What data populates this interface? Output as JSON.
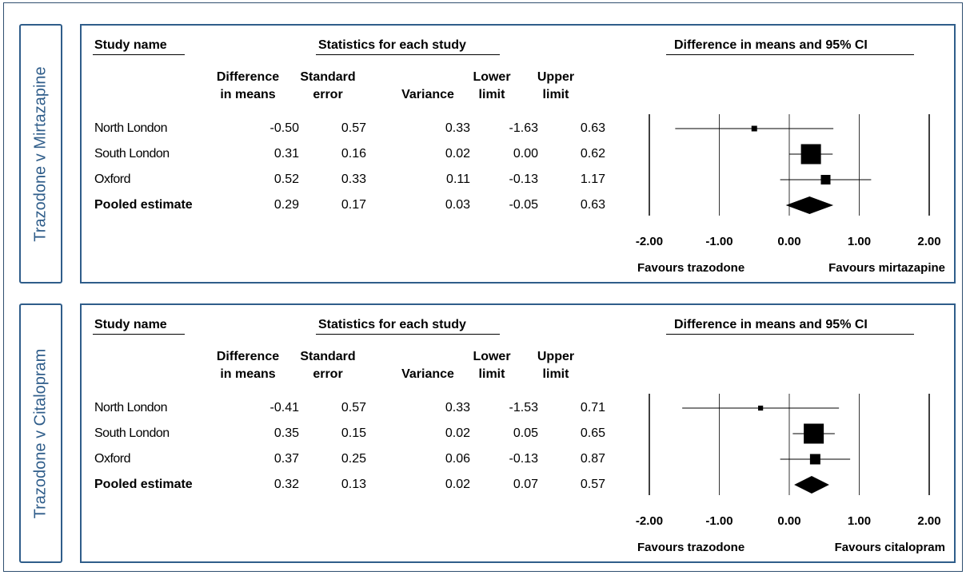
{
  "columns": {
    "study_name": "Study name",
    "stats_group": "Statistics for each study",
    "plot_title": "Difference in means and 95% CI",
    "diff_l1": "Difference",
    "diff_l2": "in means",
    "se_l1": "Standard",
    "se_l2": "error",
    "variance": "Variance",
    "lower_l1": "Lower",
    "lower_l2": "limit",
    "upper_l1": "Upper",
    "upper_l2": "limit"
  },
  "chart_data": [
    {
      "type": "forest",
      "panel_label": "Trazodone v Mirtazapine",
      "favours_left": "Favours trazodone",
      "favours_right": "Favours mirtazapine",
      "xlim": [
        -2,
        2
      ],
      "x_ticks": [
        "-2.00",
        "-1.00",
        "0.00",
        "1.00",
        "2.00"
      ],
      "rows": [
        {
          "study": "North London",
          "diff": "-0.50",
          "se": "0.57",
          "var": "0.33",
          "lower": "-1.63",
          "upper": "0.63",
          "x": -0.5,
          "lo": -1.63,
          "hi": 0.63,
          "w": 0.1
        },
        {
          "study": "South London",
          "diff": "0.31",
          "se": "0.16",
          "var": "0.02",
          "lower": "0.00",
          "upper": "0.62",
          "x": 0.31,
          "lo": 0.0,
          "hi": 0.62,
          "w": 1.0
        },
        {
          "study": "Oxford",
          "diff": "0.52",
          "se": "0.33",
          "var": "0.11",
          "lower": "-0.13",
          "upper": "1.17",
          "x": 0.52,
          "lo": -0.13,
          "hi": 1.17,
          "w": 0.35
        }
      ],
      "pooled": {
        "study": "Pooled estimate",
        "diff": "0.29",
        "se": "0.17",
        "var": "0.03",
        "lower": "-0.05",
        "upper": "0.63",
        "x": 0.29,
        "lo": -0.05,
        "hi": 0.63
      }
    },
    {
      "type": "forest",
      "panel_label": "Trazodone v Citalopram",
      "favours_left": "Favours trazodone",
      "favours_right": "Favours citalopram",
      "xlim": [
        -2,
        2
      ],
      "x_ticks": [
        "-2.00",
        "-1.00",
        "0.00",
        "1.00",
        "2.00"
      ],
      "rows": [
        {
          "study": "North London",
          "diff": "-0.41",
          "se": "0.57",
          "var": "0.33",
          "lower": "-1.53",
          "upper": "0.71",
          "x": -0.41,
          "lo": -1.53,
          "hi": 0.71,
          "w": 0.06
        },
        {
          "study": "South London",
          "diff": "0.35",
          "se": "0.15",
          "var": "0.02",
          "lower": "0.05",
          "upper": "0.65",
          "x": 0.35,
          "lo": 0.05,
          "hi": 0.65,
          "w": 1.0
        },
        {
          "study": "Oxford",
          "diff": "0.37",
          "se": "0.25",
          "var": "0.06",
          "lower": "-0.13",
          "upper": "0.87",
          "x": 0.37,
          "lo": -0.13,
          "hi": 0.87,
          "w": 0.4
        }
      ],
      "pooled": {
        "study": "Pooled estimate",
        "diff": "0.32",
        "se": "0.13",
        "var": "0.02",
        "lower": "0.07",
        "upper": "0.57",
        "x": 0.32,
        "lo": 0.07,
        "hi": 0.57
      }
    }
  ]
}
